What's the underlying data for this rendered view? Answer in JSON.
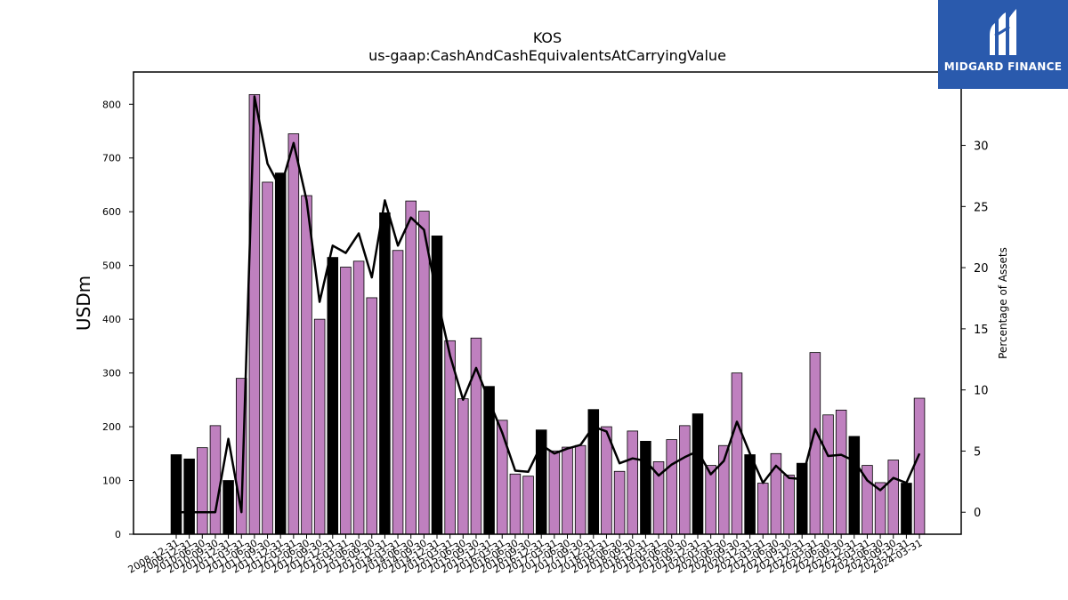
{
  "chart_data": {
    "type": "bar",
    "title": "KOS",
    "subtitle": "us-gaap:CashAndCashEquivalentsAtCarryingValue",
    "ylabel": "USDm",
    "y2label": "Percentage of Assets",
    "ylim": [
      0,
      860
    ],
    "y2lim": [
      -1.8,
      36
    ],
    "yticks": [
      0,
      100,
      200,
      300,
      400,
      500,
      600,
      700,
      800
    ],
    "y2ticks": [
      0,
      5,
      10,
      15,
      20,
      25,
      30
    ],
    "categories": [
      "2008-12-31",
      "2009-12-31",
      "2010-06-30",
      "2010-09-30",
      "2010-12-31",
      "2011-03-31",
      "2011-06-30",
      "2011-09-30",
      "2011-12-31",
      "2012-03-31",
      "2012-06-30",
      "2012-09-30",
      "2012-12-31",
      "2013-03-31",
      "2013-06-30",
      "2013-09-30",
      "2013-12-31",
      "2014-03-31",
      "2014-06-30",
      "2014-09-30",
      "2014-12-31",
      "2015-03-31",
      "2015-06-30",
      "2015-09-30",
      "2015-12-31",
      "2016-03-31",
      "2016-06-30",
      "2016-09-30",
      "2016-12-31",
      "2017-03-31",
      "2017-06-30",
      "2017-09-30",
      "2017-12-31",
      "2018-03-31",
      "2018-06-30",
      "2018-09-30",
      "2018-12-31",
      "2019-03-31",
      "2019-06-30",
      "2019-09-30",
      "2019-12-31",
      "2020-03-31",
      "2020-06-30",
      "2020-09-30",
      "2020-12-31",
      "2021-03-31",
      "2021-06-30",
      "2021-09-30",
      "2021-12-31",
      "2022-03-31",
      "2022-06-30",
      "2022-09-30",
      "2022-12-31",
      "2023-03-31",
      "2023-06-30",
      "2023-09-30",
      "2023-12-31",
      "2024-03-31"
    ],
    "series": [
      {
        "values": [
          148,
          140,
          161,
          202,
          100,
          290,
          818,
          655,
          672,
          745,
          630,
          400,
          515,
          497,
          508,
          440,
          598,
          528,
          620,
          601,
          555,
          360,
          252,
          365,
          275,
          212,
          112,
          108,
          194,
          155,
          162,
          165,
          232,
          200,
          117,
          192,
          173,
          135,
          176,
          202,
          224,
          128,
          165,
          300,
          148,
          95,
          150,
          110,
          132,
          338,
          222,
          231,
          182,
          128,
          96,
          138,
          95,
          253
        ]
      },
      {
        "values": [
          0,
          0,
          0,
          0,
          6,
          0,
          34,
          28.5,
          26.5,
          30.2,
          25.5,
          17.2,
          21.8,
          21.2,
          22.8,
          19.2,
          25.5,
          21.8,
          24.1,
          23.1,
          17.6,
          12.8,
          9.2,
          11.8,
          9.1,
          6.5,
          3.4,
          3.3,
          5.5,
          4.8,
          5.2,
          5.5,
          7,
          6.6,
          4,
          4.4,
          4.2,
          3,
          3.9,
          4.5,
          5,
          3.1,
          4.2,
          7.4,
          4.8,
          2.4,
          3.8,
          2.8,
          2.7,
          6.8,
          4.6,
          4.7,
          4.2,
          2.6,
          1.8,
          2.8,
          2.4,
          4.8
        ]
      }
    ],
    "annual_flags": [
      1,
      1,
      0,
      0,
      1,
      0,
      0,
      0,
      1,
      0,
      0,
      0,
      1,
      0,
      0,
      0,
      1,
      0,
      0,
      0,
      1,
      0,
      0,
      0,
      1,
      0,
      0,
      0,
      1,
      0,
      0,
      0,
      1,
      0,
      0,
      0,
      1,
      0,
      0,
      0,
      1,
      0,
      0,
      0,
      1,
      0,
      0,
      0,
      1,
      0,
      0,
      0,
      1,
      0,
      0,
      0,
      1,
      0
    ],
    "colors": {
      "annual": "#000000",
      "quarterly": "#bf80bf",
      "line": "#000000"
    }
  },
  "logo": {
    "text": "MIDGARD FINANCE",
    "bg": "#2a5aad"
  }
}
